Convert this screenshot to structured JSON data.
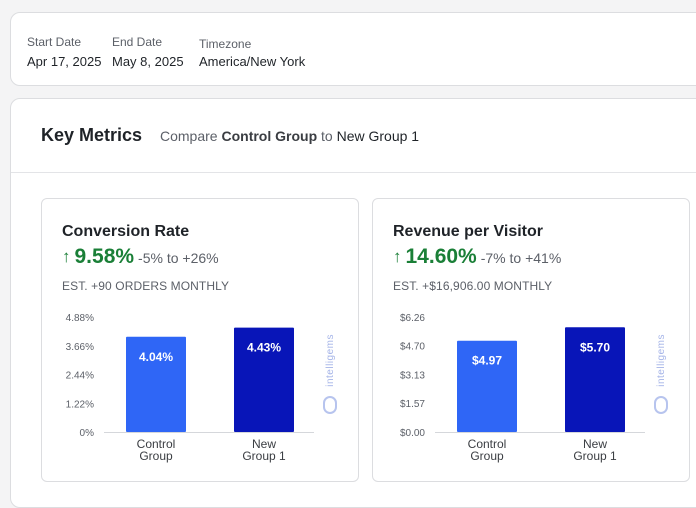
{
  "date_range": {
    "start_label": "Start Date",
    "start_value": "Apr 17, 2025",
    "end_label": "End Date",
    "end_value": "May 8, 2025",
    "timezone_label": "Timezone",
    "timezone_value": "America/New York"
  },
  "key_metrics": {
    "title": "Key Metrics",
    "compare_prefix": "Compare",
    "control_group": "Control Group",
    "compare_to": "to",
    "new_group": "New Group 1"
  },
  "colors": {
    "control_bar": "#2f66f6",
    "new_bar": "#0815b8",
    "positive": "#1a7f37"
  },
  "watermark": "intelligems",
  "metrics": [
    {
      "title": "Conversion Rate",
      "arrow": "↑",
      "lift": "9.58%",
      "range": "-5% to +26%",
      "estimate": "EST. +90 ORDERS MONTHLY"
    },
    {
      "title": "Revenue per Visitor",
      "arrow": "↑",
      "lift": "14.60%",
      "range": "-7% to +41%",
      "estimate": "EST. +$16,906.00 MONTHLY"
    }
  ],
  "chart_data": [
    {
      "type": "bar",
      "categories": [
        [
          "Control",
          "Group"
        ],
        [
          "New",
          "Group 1"
        ]
      ],
      "values": [
        4.04,
        4.43
      ],
      "value_labels": [
        "4.04%",
        "4.43%"
      ],
      "ylim": [
        0,
        4.88
      ],
      "yticks": [
        0,
        1.22,
        2.44,
        3.66,
        4.88
      ],
      "ytick_labels": [
        "0%",
        "1.22%",
        "2.44%",
        "3.66%",
        "4.88%"
      ],
      "grid": false
    },
    {
      "type": "bar",
      "categories": [
        [
          "Control",
          "Group"
        ],
        [
          "New",
          "Group 1"
        ]
      ],
      "values": [
        4.97,
        5.7
      ],
      "value_labels": [
        "$4.97",
        "$5.70"
      ],
      "ylim": [
        0,
        6.26
      ],
      "yticks": [
        0,
        1.57,
        3.13,
        4.7,
        6.26
      ],
      "ytick_labels": [
        "$0.00",
        "$1.57",
        "$3.13",
        "$4.70",
        "$6.26"
      ],
      "grid": false
    }
  ]
}
